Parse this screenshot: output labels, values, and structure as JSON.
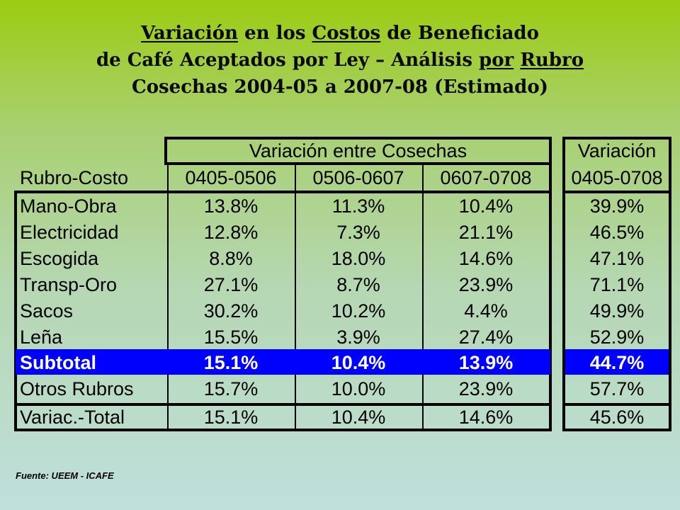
{
  "title": {
    "line1": {
      "w1": "Variación",
      "w2": " en los ",
      "w3": "Costos",
      "w4": " de Beneficiado"
    },
    "line2": {
      "w1": "de Café Aceptados por Ley – Análisis ",
      "w2": "por",
      "w3": " ",
      "w4": "Rubro"
    },
    "line3": "Cosechas 2004-05 a 2007-08 (Estimado)"
  },
  "table": {
    "group_header_main": "Variación entre Cosechas",
    "group_header_side": "Variación",
    "columns": [
      "Rubro-Costo",
      "0405-0506",
      "0506-0607",
      "0607-0708",
      "0405-0708"
    ],
    "rows": [
      {
        "name": "Mano-Obra",
        "values": [
          "13.8%",
          "11.3%",
          "10.4%",
          "39.9%"
        ]
      },
      {
        "name": "Electricidad",
        "values": [
          "12.8%",
          "7.3%",
          "21.1%",
          "46.5%"
        ]
      },
      {
        "name": "Escogida",
        "values": [
          "8.8%",
          "18.0%",
          "14.6%",
          "47.1%"
        ]
      },
      {
        "name": "Transp-Oro",
        "values": [
          "27.1%",
          "8.7%",
          "23.9%",
          "71.1%"
        ]
      },
      {
        "name": "Sacos",
        "values": [
          "30.2%",
          "10.2%",
          "4.4%",
          "49.9%"
        ]
      },
      {
        "name": "Leña",
        "values": [
          "15.5%",
          "3.9%",
          "27.4%",
          "52.9%"
        ]
      },
      {
        "name": "Subtotal",
        "values": [
          "15.1%",
          "10.4%",
          "13.9%",
          "44.7%"
        ],
        "highlight": true
      },
      {
        "name": "Otros Rubros",
        "values": [
          "15.7%",
          "10.0%",
          "23.9%",
          "57.7%"
        ]
      },
      {
        "name": "Variac.-Total",
        "values": [
          "15.1%",
          "10.4%",
          "14.6%",
          "45.6%"
        ]
      }
    ],
    "highlight_color": "#0000ff"
  },
  "source": "Fuente: UEEM - ICAFE"
}
